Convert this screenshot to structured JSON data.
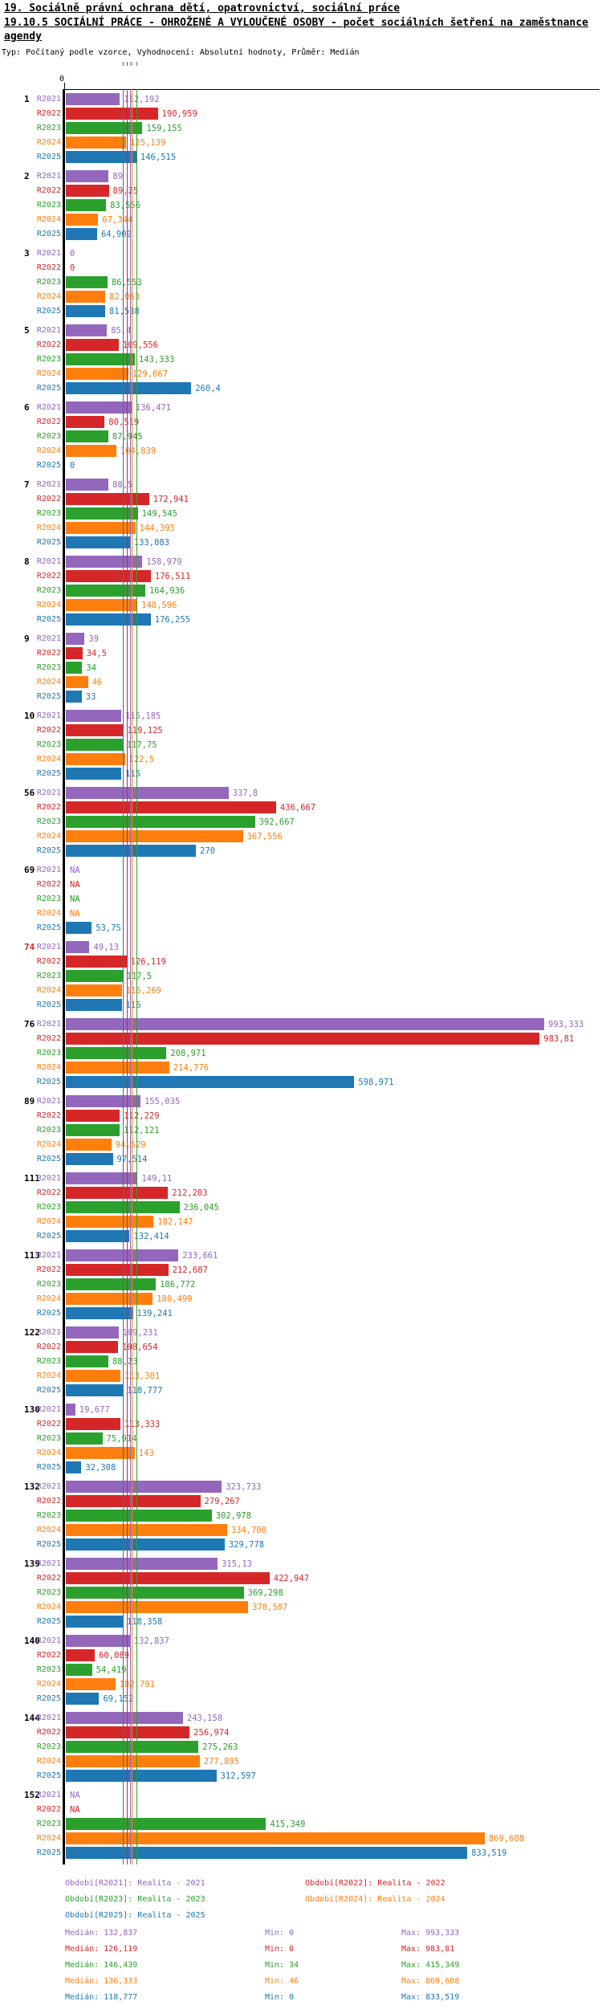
{
  "title": {
    "line1": "19. Sociálně právní ochrana dětí, opatrovnictví, sociální práce",
    "line2": "19.10.5 SOCIÁLNÍ PRÁCE - OHROŽENÉ A VYLOUČENÉ OSOBY - počet sociálních šetření na zaměstnance agendy",
    "meta": "Typ: Počítaný podle vzorce, Vyhodnocení: Absolutní hodnoty, Průměr: Medián"
  },
  "axis": {
    "zero_label": "0"
  },
  "chart_data": {
    "type": "bar",
    "orientation": "horizontal",
    "title": "19.10.5 SOCIÁLNÍ PRÁCE - OHROŽENÉ A VYLOUČENÉ OSOBY - počet sociálních šetření na zaměstnance agendy",
    "series_labels": [
      "R2021",
      "R2022",
      "R2023",
      "R2024",
      "R2025"
    ],
    "series_colors": [
      "#9467bd",
      "#d62728",
      "#2ca02c",
      "#ff7f0e",
      "#1f77b4"
    ],
    "na_text": "NA",
    "xlim": [
      0,
      1100
    ],
    "highlight_group_ids": [
      "74"
    ],
    "highlight_color": "#d62728",
    "medians": [
      132.837,
      126.119,
      146.439,
      136.333,
      118.777
    ],
    "groups": [
      {
        "id": "1",
        "values": [
          112.192,
          190.959,
          159.155,
          125.139,
          146.515
        ]
      },
      {
        "id": "2",
        "values": [
          89,
          89.25,
          83.556,
          67.344,
          64.909
        ]
      },
      {
        "id": "3",
        "values": [
          0,
          0,
          86.553,
          82.063,
          81.538
        ]
      },
      {
        "id": "5",
        "values": [
          85.4,
          109.556,
          143.333,
          129.667,
          260.4
        ]
      },
      {
        "id": "6",
        "values": [
          136.471,
          80.519,
          87.945,
          104.839,
          0
        ]
      },
      {
        "id": "7",
        "values": [
          88.5,
          172.941,
          149.545,
          144.395,
          133.083
        ]
      },
      {
        "id": "8",
        "values": [
          158.979,
          176.511,
          164.936,
          148.596,
          176.255
        ]
      },
      {
        "id": "9",
        "values": [
          39,
          34.5,
          34,
          46,
          33
        ]
      },
      {
        "id": "10",
        "values": [
          115.185,
          119.125,
          117.75,
          122.5,
          115
        ]
      },
      {
        "id": "56",
        "values": [
          337.8,
          436.667,
          392.667,
          367.556,
          270
        ]
      },
      {
        "id": "69",
        "values": [
          null,
          null,
          null,
          null,
          53.75
        ]
      },
      {
        "id": "74",
        "values": [
          49.13,
          126.119,
          117.5,
          116.269,
          116
        ]
      },
      {
        "id": "76",
        "values": [
          993.333,
          983.81,
          208.971,
          214.776,
          598.971
        ]
      },
      {
        "id": "89",
        "values": [
          155.035,
          112.229,
          112.121,
          94.529,
          97.514
        ]
      },
      {
        "id": "111",
        "values": [
          149.11,
          212.203,
          236.045,
          182.147,
          132.414
        ]
      },
      {
        "id": "113",
        "values": [
          233.661,
          212.687,
          186.772,
          180.499,
          139.241
        ]
      },
      {
        "id": "122",
        "values": [
          109.231,
          108.654,
          88.23,
          113.301,
          118.777
        ]
      },
      {
        "id": "130",
        "values": [
          19.677,
          113.333,
          75.914,
          143,
          32.308
        ]
      },
      {
        "id": "132",
        "values": [
          323.733,
          279.267,
          302.978,
          334.708,
          329.778
        ]
      },
      {
        "id": "139",
        "values": [
          315.13,
          422.947,
          369.298,
          378.507,
          118.358
        ]
      },
      {
        "id": "140",
        "values": [
          132.837,
          60.089,
          54.419,
          102.791,
          69.152
        ]
      },
      {
        "id": "144",
        "values": [
          243.158,
          256.974,
          275.263,
          277.895,
          312.597
        ]
      },
      {
        "id": "152",
        "values": [
          null,
          null,
          415.349,
          869.608,
          833.519
        ]
      }
    ]
  },
  "legend": [
    {
      "label": "Období[R2021]: Realita - 2021"
    },
    {
      "label": "Období[R2022]: Realita - 2022"
    },
    {
      "label": "Období[R2023]: Realita - 2023"
    },
    {
      "label": "Období[R2024]: Realita - 2024"
    },
    {
      "label": "Období[R2025]: Realita - 2025"
    }
  ],
  "stats": [
    {
      "median": "Medián: 132,837",
      "min": "Min: 0",
      "max": "Max: 993,333"
    },
    {
      "median": "Medián: 126,119",
      "min": "Min: 0",
      "max": "Max: 983,81"
    },
    {
      "median": "Medián: 146,439",
      "min": "Min: 34",
      "max": "Max: 415,349"
    },
    {
      "median": "Medián: 136,333",
      "min": "Min: 46",
      "max": "Max: 869,608"
    },
    {
      "median": "Medián: 118,777",
      "min": "Min: 0",
      "max": "Max: 833,519"
    }
  ]
}
